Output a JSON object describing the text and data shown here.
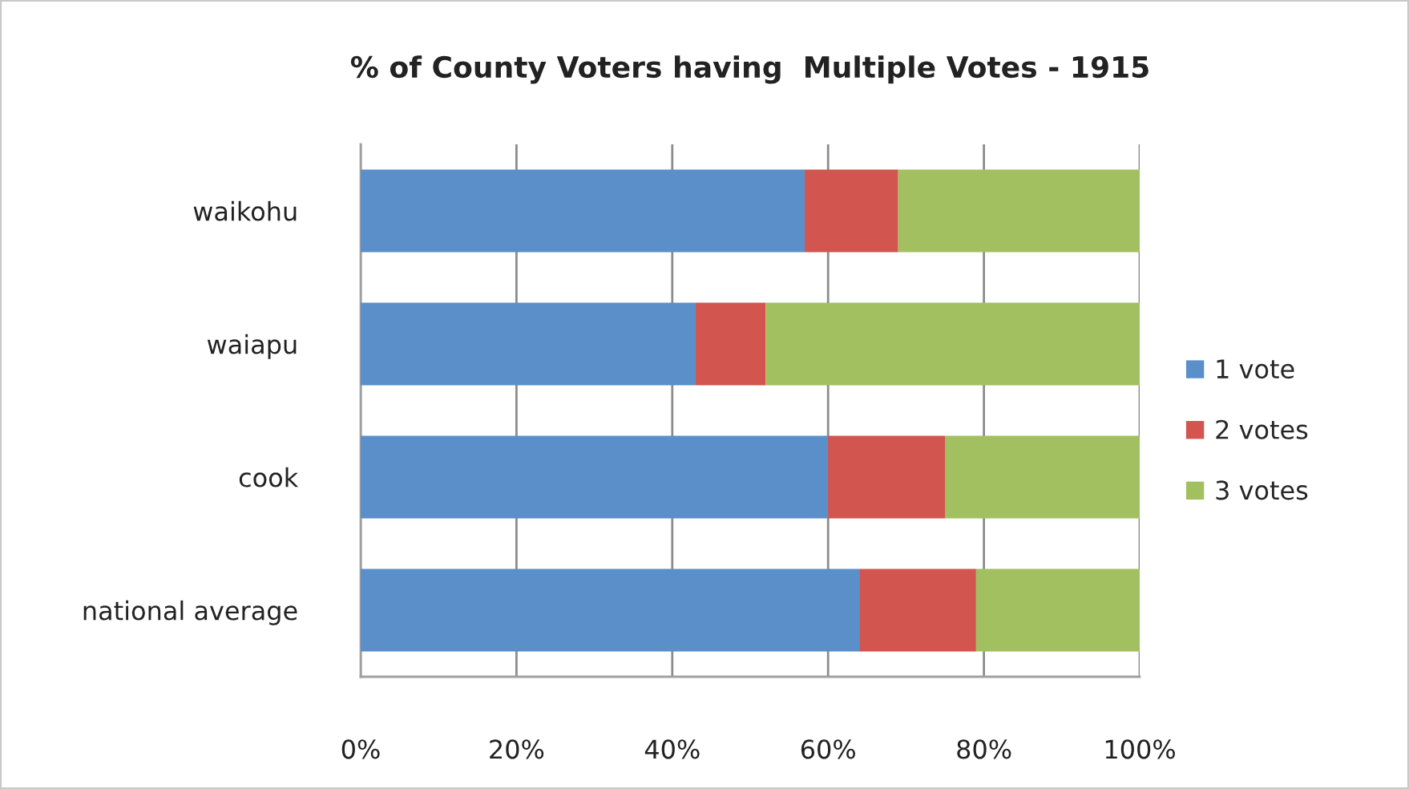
{
  "chart_data": {
    "type": "bar",
    "orientation": "horizontal",
    "stacked": true,
    "title": "% of County Voters having  Multiple Votes - 1915",
    "categories": [
      "waikohu",
      "waiapu",
      "cook",
      "national average"
    ],
    "series": [
      {
        "name": "1 vote",
        "color": "#5b8fc9",
        "values": [
          57,
          43,
          60,
          64
        ]
      },
      {
        "name": "2 votes",
        "color": "#d2554f",
        "values": [
          12,
          9,
          15,
          15
        ]
      },
      {
        "name": "3 votes",
        "color": "#a2c05f",
        "values": [
          31,
          48,
          25,
          21
        ]
      }
    ],
    "xlim": [
      0,
      100
    ],
    "xticks": [
      {
        "value": 0,
        "label": "0%"
      },
      {
        "value": 20,
        "label": "20%"
      },
      {
        "value": 40,
        "label": "40%"
      },
      {
        "value": 60,
        "label": "60%"
      },
      {
        "value": 80,
        "label": "80%"
      },
      {
        "value": 100,
        "label": "100%"
      }
    ],
    "grid": "x",
    "legend": "right"
  }
}
